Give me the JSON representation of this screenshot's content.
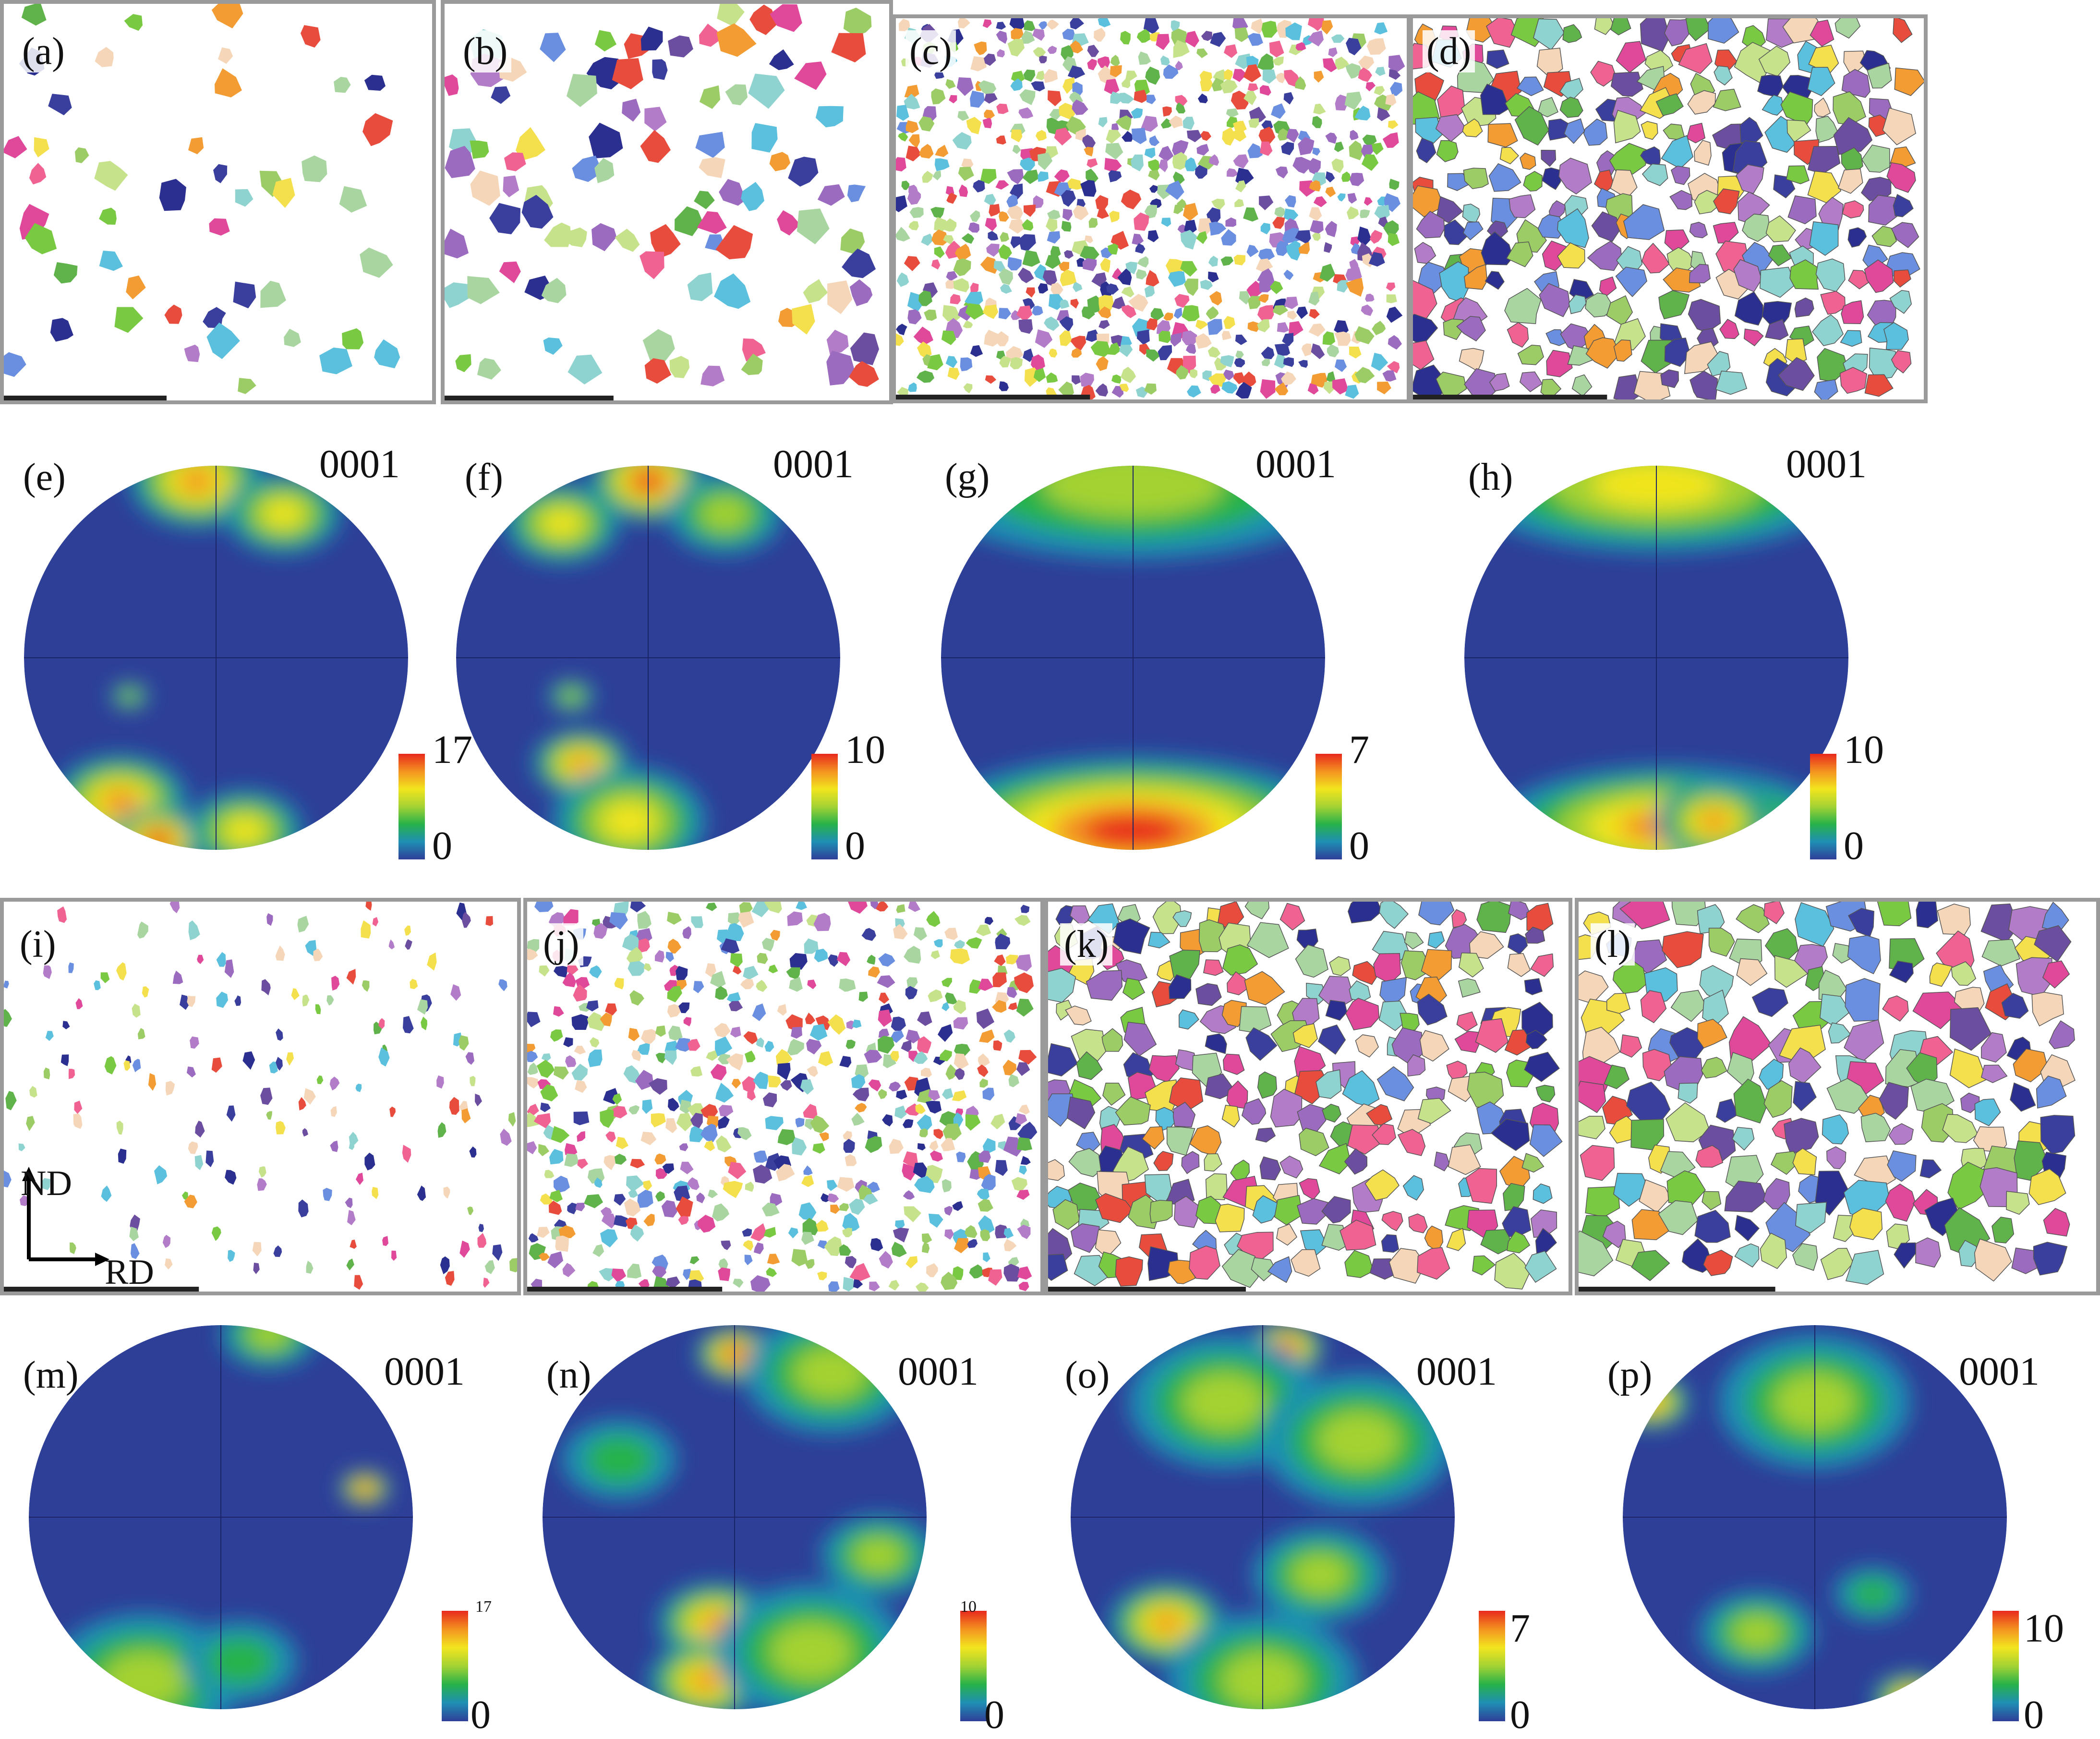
{
  "ebsd_maps": [
    {
      "label": "(a)",
      "density": 0.12,
      "size": 1.0
    },
    {
      "label": "(b)",
      "density": 0.35,
      "size": 1.1
    },
    {
      "label": "(c)",
      "density": 0.55,
      "size": 0.55
    },
    {
      "label": "(d)",
      "density": 0.92,
      "size": 1.1
    },
    {
      "label": "(i)",
      "density": 0.05,
      "size": 0.35
    },
    {
      "label": "(j)",
      "density": 0.45,
      "size": 0.55
    },
    {
      "label": "(k)",
      "density": 0.82,
      "size": 1.1
    },
    {
      "label": "(l)",
      "density": 0.95,
      "size": 1.35
    }
  ],
  "pole_figures": [
    {
      "label": "(e)",
      "title": "0001",
      "max": "17",
      "min": "0"
    },
    {
      "label": "(f)",
      "title": "0001",
      "max": "10",
      "min": "0"
    },
    {
      "label": "(g)",
      "title": "0001",
      "max": "7",
      "min": "0"
    },
    {
      "label": "(h)",
      "title": "0001",
      "max": "10",
      "min": "0"
    },
    {
      "label": "(m)",
      "title": "0001",
      "max": "17",
      "min": "0"
    },
    {
      "label": "(n)",
      "title": "0001",
      "max": "10",
      "min": "0"
    },
    {
      "label": "(o)",
      "title": "0001",
      "max": "7",
      "min": "0"
    },
    {
      "label": "(p)",
      "title": "0001",
      "max": "10",
      "min": "0"
    }
  ],
  "axes": {
    "vertical": "ND",
    "horizontal": "RD"
  },
  "colors": {
    "grains": [
      "#2b2f8f",
      "#3a3f9e",
      "#7ac943",
      "#5fb34a",
      "#9ccc65",
      "#6b4ea0",
      "#9b6bbf",
      "#b27cc9",
      "#e0489a",
      "#f06292",
      "#f4e04d",
      "#e84c3d",
      "#f39c33",
      "#8fd3d0",
      "#5bc0de",
      "#c6e28a",
      "#a8d5a0",
      "#f5d6b8",
      "#6a8ee0"
    ],
    "pf_scale": [
      "#2e3f98",
      "#1f8fb4",
      "#27b24a",
      "#a4d233",
      "#f2e51e",
      "#f39320",
      "#e8291d"
    ],
    "border": "#9a9a9a"
  }
}
